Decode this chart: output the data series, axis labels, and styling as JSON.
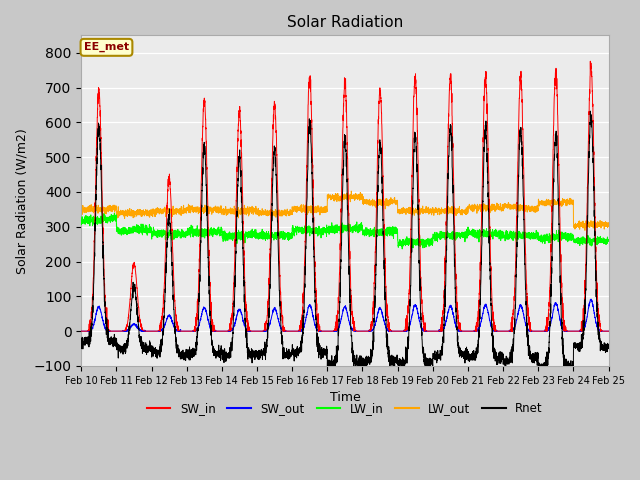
{
  "title": "Solar Radiation",
  "xlabel": "Time",
  "ylabel": "Solar Radiation (W/m2)",
  "ylim": [
    -100,
    850
  ],
  "yticks": [
    -100,
    0,
    100,
    200,
    300,
    400,
    500,
    600,
    700,
    800
  ],
  "fig_bg": "#c8c8c8",
  "plot_bg": "#f0f0f0",
  "annotation_text": "EE_met",
  "annotation_bg": "#ffffcc",
  "annotation_border": "#aa8800",
  "n_days": 15,
  "start_day": 10,
  "n_points_per_day": 288,
  "sw_in_peaks": [
    690,
    195,
    440,
    665,
    630,
    650,
    730,
    710,
    690,
    730,
    730,
    730,
    730,
    745,
    760
  ],
  "sw_out_peaks": [
    70,
    20,
    45,
    68,
    62,
    65,
    75,
    70,
    65,
    75,
    72,
    75,
    73,
    80,
    90
  ],
  "lw_in_base": [
    320,
    290,
    280,
    285,
    275,
    275,
    290,
    295,
    285,
    255,
    275,
    280,
    275,
    270,
    260
  ],
  "lw_out_base": [
    350,
    340,
    345,
    350,
    345,
    340,
    350,
    385,
    370,
    345,
    345,
    355,
    355,
    370,
    305
  ]
}
